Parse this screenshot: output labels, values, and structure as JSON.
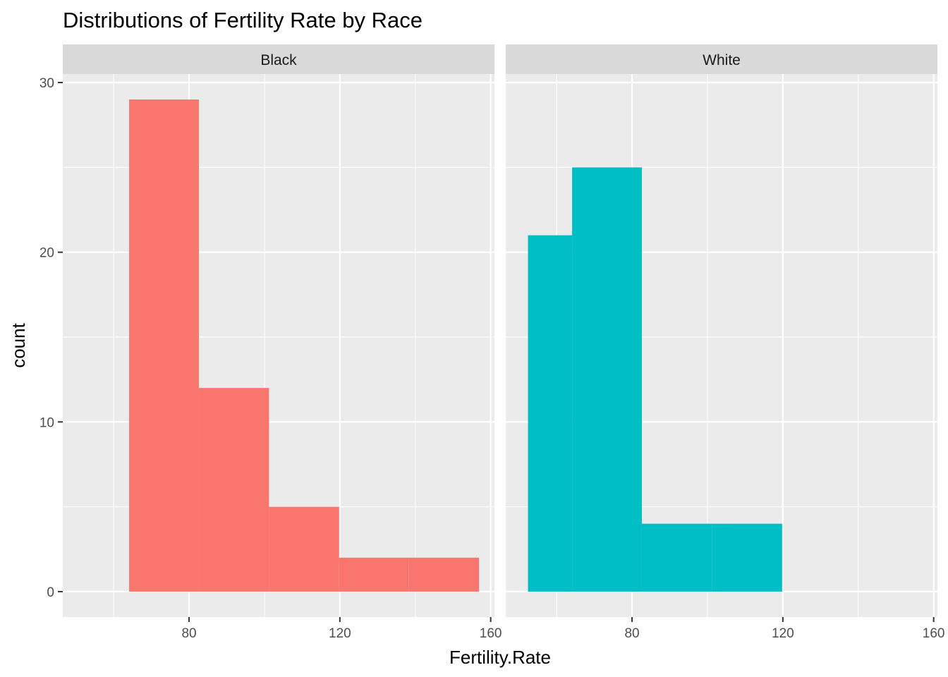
{
  "chart_data": {
    "type": "bar",
    "title": "Distributions of Fertility Rate by Race",
    "xlabel": "Fertility.Rate",
    "ylabel": "count",
    "xlim": [
      46.5,
      161
    ],
    "ylim": [
      -1.5,
      30.5
    ],
    "x_ticks": [
      80,
      120,
      160
    ],
    "x_minor": [
      60,
      100,
      140
    ],
    "y_ticks": [
      0,
      10,
      20,
      30
    ],
    "y_minor": [
      5,
      15,
      25
    ],
    "grid": true,
    "legend": "none",
    "panels": [
      {
        "name": "Black",
        "color": "#F8766D",
        "bins": [
          {
            "x0": 64.1,
            "x1": 82.6,
            "count": 29
          },
          {
            "x0": 82.6,
            "x1": 101.2,
            "count": 12
          },
          {
            "x0": 101.2,
            "x1": 119.8,
            "count": 5
          },
          {
            "x0": 119.8,
            "x1": 138.3,
            "count": 2
          },
          {
            "x0": 138.3,
            "x1": 156.9,
            "count": 2
          }
        ]
      },
      {
        "name": "White",
        "color": "#00BFC4",
        "bins": [
          {
            "x0": 52.4,
            "x1": 64.1,
            "count": 21
          },
          {
            "x0": 64.1,
            "x1": 82.6,
            "count": 25
          },
          {
            "x0": 82.6,
            "x1": 101.2,
            "count": 4
          },
          {
            "x0": 101.2,
            "x1": 119.8,
            "count": 4
          }
        ]
      }
    ]
  }
}
